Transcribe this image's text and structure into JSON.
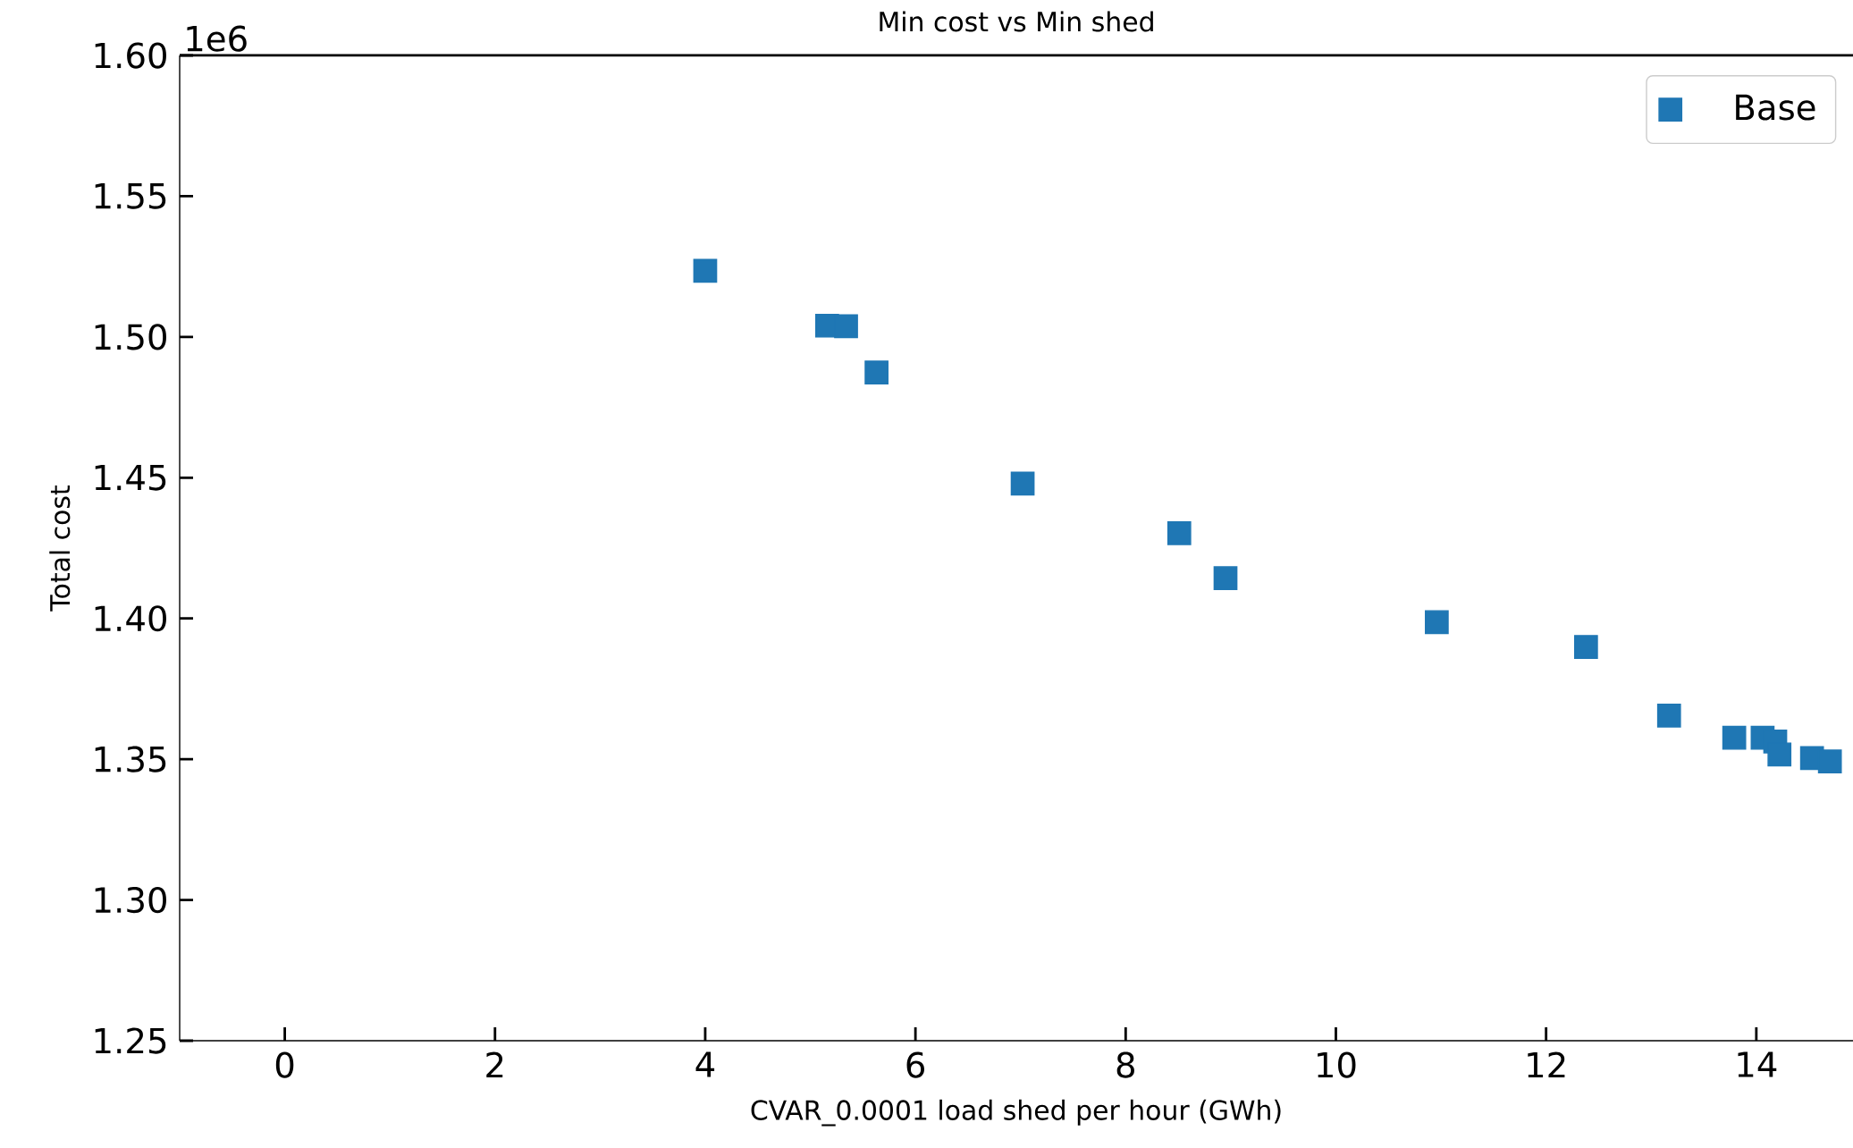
{
  "chart_data": {
    "type": "scatter",
    "title": "Min cost vs Min shed",
    "xlabel": "CVAR_0.0001 load shed per hour (GWh)",
    "ylabel": "Total cost",
    "annotations": [
      "1e6"
    ],
    "series": [
      {
        "name": "Base",
        "color": "#1f77b4",
        "marker": "square",
        "x": [
          4.0,
          5.16,
          5.34,
          5.63,
          7.02,
          8.51,
          8.95,
          10.96,
          12.38,
          13.17,
          13.79,
          14.06,
          14.18,
          14.22,
          14.53,
          14.7
        ],
        "values": [
          1.5235,
          1.504,
          1.5038,
          1.4874,
          1.4479,
          1.4303,
          1.4143,
          1.3987,
          1.3899,
          1.3655,
          1.3576,
          1.3576,
          1.3563,
          1.3517,
          1.3504,
          1.3492
        ]
      }
    ],
    "xlim": [
      -1,
      14.92
    ],
    "ylim": [
      1.25,
      1.6
    ],
    "xticks": [
      0,
      2,
      4,
      6,
      8,
      10,
      12,
      14
    ],
    "yticks": [
      1.25,
      {
        "value": 1.3,
        "label": "1.30"
      },
      1.35,
      {
        "value": 1.4,
        "label": "1.40"
      },
      1.45,
      {
        "value": 1.5,
        "label": "1.50"
      },
      1.55,
      {
        "value": 1.6,
        "label": "1.60"
      }
    ],
    "grid": false,
    "legend": "top right"
  }
}
